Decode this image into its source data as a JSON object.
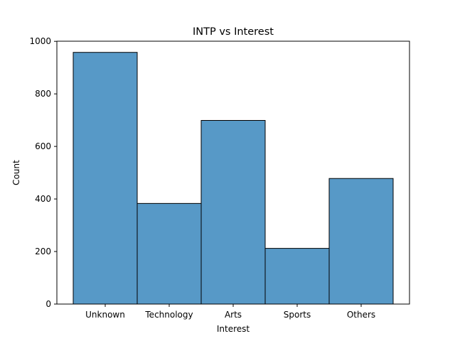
{
  "chart_data": {
    "type": "bar",
    "title": "INTP vs Interest",
    "xlabel": "Interest",
    "ylabel": "Count",
    "categories": [
      "Unknown",
      "Technology",
      "Arts",
      "Sports",
      "Others"
    ],
    "values": [
      958,
      383,
      699,
      212,
      478
    ],
    "ylim": [
      0,
      1000
    ],
    "yticks": [
      0,
      200,
      400,
      600,
      800,
      1000
    ],
    "grid": false,
    "bar_color": "#5799c7",
    "edge_color": "#000000"
  }
}
